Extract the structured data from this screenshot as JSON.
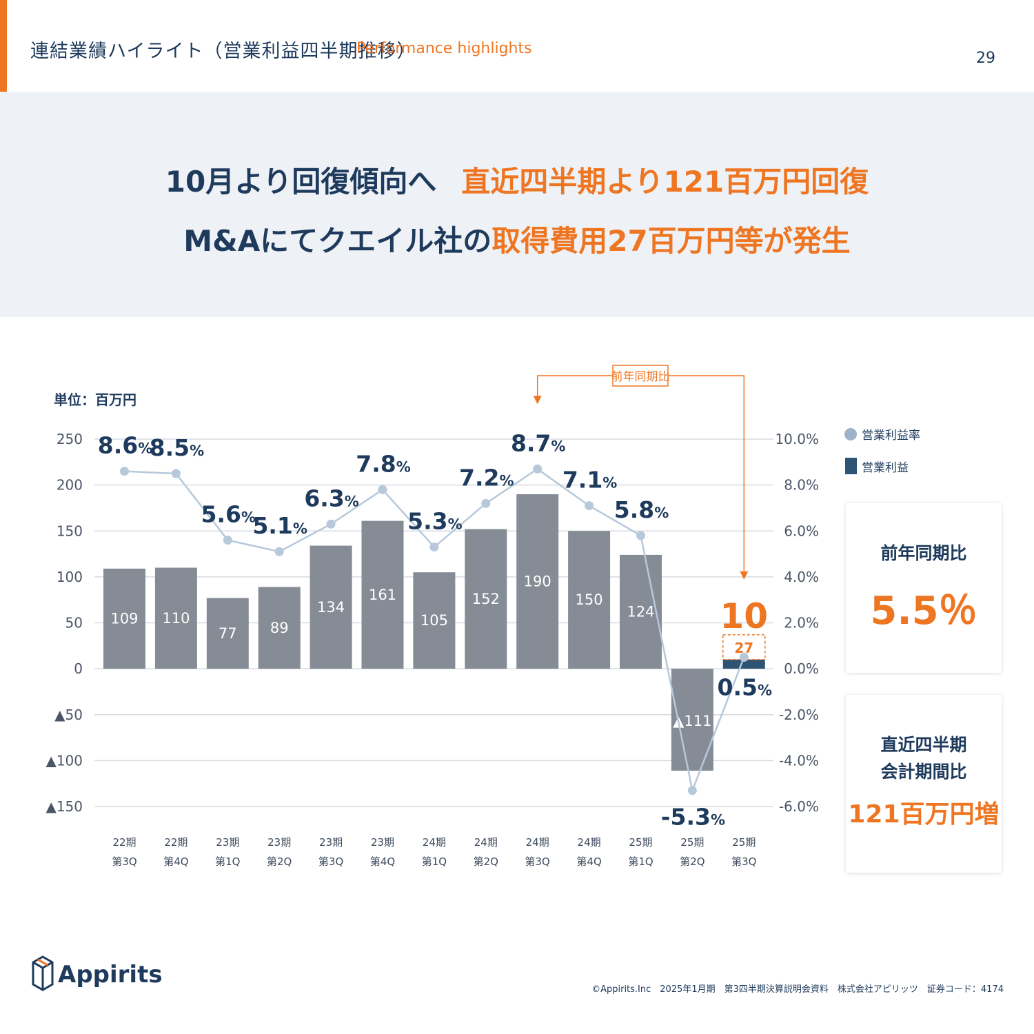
{
  "header": {
    "title": "連結業績ハイライト（営業利益四半期推移）",
    "subtitle": "Performance highlights",
    "page_number": "29"
  },
  "headline": {
    "line1_dark": "10月より回復傾向へ",
    "line1_orange": "直近四半期より121百万円回復",
    "line2_dark": "M&Aにてクエイル社の",
    "line2_orange": "取得費用27百万円等が発生"
  },
  "chart_data": {
    "type": "bar+line",
    "unit_label": "単位：百万円",
    "categories": [
      [
        "22期",
        "第3Q"
      ],
      [
        "22期",
        "第4Q"
      ],
      [
        "23期",
        "第1Q"
      ],
      [
        "23期",
        "第2Q"
      ],
      [
        "23期",
        "第3Q"
      ],
      [
        "23期",
        "第4Q"
      ],
      [
        "24期",
        "第1Q"
      ],
      [
        "24期",
        "第2Q"
      ],
      [
        "24期",
        "第3Q"
      ],
      [
        "24期",
        "第4Q"
      ],
      [
        "25期",
        "第1Q"
      ],
      [
        "25期",
        "第2Q"
      ],
      [
        "25期",
        "第3Q"
      ]
    ],
    "series": [
      {
        "name": "営業利益",
        "type": "bar",
        "axis": "left",
        "values": [
          109,
          110,
          77,
          89,
          134,
          161,
          105,
          152,
          190,
          150,
          124,
          -111,
          10
        ],
        "value_labels": [
          "109",
          "110",
          "77",
          "89",
          "134",
          "161",
          "105",
          "152",
          "190",
          "150",
          "124",
          "▲111",
          "10"
        ]
      },
      {
        "name": "営業利益率",
        "type": "line",
        "axis": "right",
        "values": [
          8.6,
          8.5,
          5.6,
          5.1,
          6.3,
          7.8,
          5.3,
          7.2,
          8.7,
          7.1,
          5.8,
          -5.3,
          0.5
        ],
        "value_labels": [
          "8.6",
          "8.5",
          "5.6",
          "5.1",
          "6.3",
          "7.8",
          "5.3",
          "7.2",
          "8.7",
          "7.1",
          "5.8",
          "-5.3",
          "0.5"
        ]
      }
    ],
    "acquisition_cost": {
      "value": 27,
      "label": "27"
    },
    "left_axis": {
      "ylim": [
        -150,
        250
      ],
      "ticks": [
        "250",
        "200",
        "150",
        "100",
        "50",
        "0",
        "▲50",
        "▲100",
        "▲150"
      ],
      "tick_values": [
        250,
        200,
        150,
        100,
        50,
        0,
        -50,
        -100,
        -150
      ]
    },
    "right_axis": {
      "ylim": [
        -6,
        10
      ],
      "ticks": [
        "10.0%",
        "8.0%",
        "6.0%",
        "4.0%",
        "2.0%",
        "0.0%",
        "-2.0%",
        "-4.0%",
        "-6.0%"
      ],
      "tick_values": [
        10,
        8,
        6,
        4,
        2,
        0,
        -2,
        -4,
        -6
      ]
    },
    "percent_suffix": "%",
    "comparison_label": "前年同期比",
    "legend": {
      "placement": "top-right",
      "items": [
        "営業利益率",
        "営業利益"
      ]
    },
    "grid": true
  },
  "colors": {
    "accent": "#ee7623",
    "navy": "#1e3a5c",
    "bar": "#868c95",
    "bar_current": "#2d5474",
    "line": "#b6c8d9"
  },
  "cards": {
    "yoy_label": "前年同期比",
    "yoy_value": "5.5％",
    "qoq_label_line1": "直近四半期",
    "qoq_label_line2": "会計期間比",
    "qoq_value": "121百万円増"
  },
  "footer": {
    "logo_text": "Appirits",
    "copyright": "©Appirits.Inc　2025年1月期　第3四半期決算説明会資料　株式会社アピリッツ　証券コード：4174"
  }
}
